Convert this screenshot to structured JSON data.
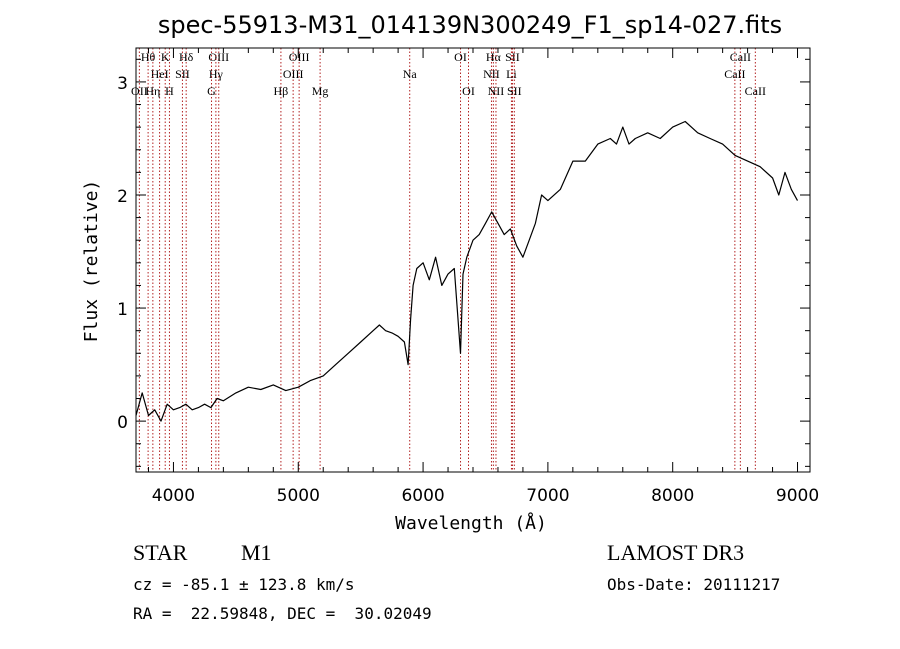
{
  "chart_data": {
    "type": "line",
    "title": "spec-55913-M31_014139N300249_F1_sp14-027.fits",
    "xlabel": "Wavelength (Å)",
    "ylabel": "Flux (relative)",
    "xlim": [
      3700,
      9100
    ],
    "ylim": [
      -0.45,
      3.3
    ],
    "xticks": [
      4000,
      5000,
      6000,
      7000,
      8000,
      9000
    ],
    "xtick_labels": [
      "4000",
      "5000",
      "6000",
      "7000",
      "8000",
      "9000"
    ],
    "yticks": [
      0,
      1,
      2,
      3
    ],
    "ytick_labels": [
      "0",
      "1",
      "2",
      "3"
    ],
    "line_color": "#000000",
    "marker_color": "#b22222",
    "series": [
      {
        "name": "flux",
        "x": [
          3700,
          3750,
          3800,
          3850,
          3900,
          3950,
          4000,
          4050,
          4100,
          4150,
          4200,
          4250,
          4300,
          4350,
          4400,
          4500,
          4600,
          4700,
          4800,
          4900,
          5000,
          5100,
          5200,
          5300,
          5400,
          5500,
          5600,
          5650,
          5700,
          5750,
          5800,
          5850,
          5880,
          5900,
          5920,
          5950,
          6000,
          6050,
          6100,
          6150,
          6200,
          6250,
          6300,
          6320,
          6350,
          6400,
          6450,
          6500,
          6550,
          6600,
          6650,
          6700,
          6750,
          6800,
          6850,
          6900,
          6950,
          7000,
          7100,
          7200,
          7300,
          7400,
          7500,
          7550,
          7600,
          7650,
          7700,
          7800,
          7900,
          8000,
          8100,
          8200,
          8300,
          8400,
          8500,
          8600,
          8700,
          8800,
          8850,
          8900,
          8950,
          9000
        ],
        "y": [
          0.05,
          0.25,
          0.05,
          0.1,
          0.0,
          0.15,
          0.1,
          0.12,
          0.15,
          0.1,
          0.12,
          0.15,
          0.12,
          0.2,
          0.18,
          0.25,
          0.3,
          0.28,
          0.32,
          0.27,
          0.3,
          0.36,
          0.4,
          0.5,
          0.6,
          0.7,
          0.8,
          0.85,
          0.8,
          0.78,
          0.75,
          0.7,
          0.5,
          0.9,
          1.2,
          1.35,
          1.4,
          1.25,
          1.45,
          1.2,
          1.3,
          1.35,
          0.6,
          1.3,
          1.45,
          1.6,
          1.65,
          1.75,
          1.85,
          1.75,
          1.65,
          1.7,
          1.55,
          1.45,
          1.6,
          1.75,
          2.0,
          1.95,
          2.05,
          2.3,
          2.3,
          2.45,
          2.5,
          2.45,
          2.6,
          2.45,
          2.5,
          2.55,
          2.5,
          2.6,
          2.65,
          2.55,
          2.5,
          2.45,
          2.35,
          2.3,
          2.25,
          2.15,
          2.0,
          2.2,
          2.05,
          1.95
        ]
      }
    ],
    "spectral_lines": [
      {
        "label": "Hθ",
        "x": 3797,
        "row": 0
      },
      {
        "label": "OII",
        "x": 3727,
        "row": 2
      },
      {
        "label": "HeI",
        "x": 3889,
        "row": 1
      },
      {
        "label": "Hη",
        "x": 3835,
        "row": 2
      },
      {
        "label": "K",
        "x": 3934,
        "row": 0
      },
      {
        "label": "H",
        "x": 3968,
        "row": 2
      },
      {
        "label": "SII",
        "x": 4072,
        "row": 1
      },
      {
        "label": "Hδ",
        "x": 4102,
        "row": 0
      },
      {
        "label": "OIII",
        "x": 4363,
        "row": 0
      },
      {
        "label": "Hγ",
        "x": 4340,
        "row": 1
      },
      {
        "label": "G",
        "x": 4305,
        "row": 2
      },
      {
        "label": "Hβ",
        "x": 4861,
        "row": 2
      },
      {
        "label": "OIII",
        "x": 5007,
        "row": 0
      },
      {
        "label": "OIII",
        "x": 4959,
        "row": 1
      },
      {
        "label": "Mg",
        "x": 5175,
        "row": 2
      },
      {
        "label": "Na",
        "x": 5893,
        "row": 1
      },
      {
        "label": "OI",
        "x": 6300,
        "row": 0
      },
      {
        "label": "OI",
        "x": 6364,
        "row": 2
      },
      {
        "label": "Hα",
        "x": 6563,
        "row": 0
      },
      {
        "label": "NII",
        "x": 6548,
        "row": 1
      },
      {
        "label": "NII",
        "x": 6584,
        "row": 2
      },
      {
        "label": "SII",
        "x": 6716,
        "row": 0
      },
      {
        "label": "Li",
        "x": 6708,
        "row": 1
      },
      {
        "label": "SII",
        "x": 6731,
        "row": 2
      },
      {
        "label": "CaII",
        "x": 8542,
        "row": 0
      },
      {
        "label": "CaII",
        "x": 8498,
        "row": 1
      },
      {
        "label": "CaII",
        "x": 8662,
        "row": 2
      }
    ]
  },
  "info": {
    "object_class": "STAR",
    "subclass": "M1",
    "survey": "LAMOST DR3",
    "cz": "cz = -85.1 ± 123.8 km/s",
    "obs_date": "Obs-Date: 20111217",
    "coords": "RA =  22.59848, DEC =  30.02049"
  }
}
